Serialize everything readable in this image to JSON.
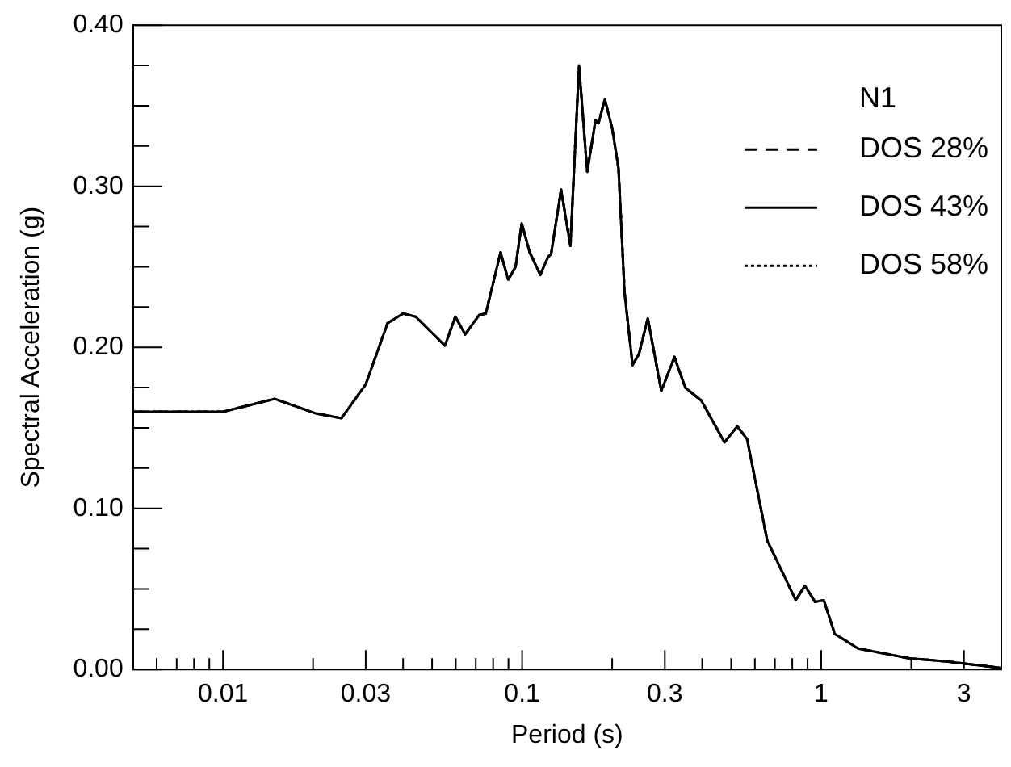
{
  "chart_data": {
    "type": "line",
    "xlabel": "Period (s)",
    "ylabel": "Spectral Acceleration (g)",
    "legend_title": "N1",
    "legend": "top right",
    "grid": false,
    "marker": "none",
    "log": "x",
    "x": [
      0.005,
      0.01,
      0.0149,
      0.0204,
      0.0249,
      0.03,
      0.0355,
      0.04,
      0.0441,
      0.0552,
      0.0598,
      0.0645,
      0.0718,
      0.0756,
      0.0847,
      0.0898,
      0.0951,
      0.0997,
      0.106,
      0.115,
      0.122,
      0.125,
      0.135,
      0.145,
      0.155,
      0.165,
      0.176,
      0.18,
      0.189,
      0.2,
      0.21,
      0.22,
      0.234,
      0.246,
      0.263,
      0.292,
      0.323,
      0.351,
      0.397,
      0.475,
      0.524,
      0.565,
      0.66,
      0.822,
      0.882,
      0.953,
      1.02,
      1.11,
      1.33,
      1.96,
      2.62,
      3.97
    ],
    "series": [
      {
        "name": "DOS 28%",
        "color": "#000000",
        "line_style": "dashed",
        "values": [
          0.16,
          0.16,
          0.168,
          0.159,
          0.156,
          0.177,
          0.215,
          0.221,
          0.219,
          0.201,
          0.219,
          0.208,
          0.22,
          0.221,
          0.259,
          0.242,
          0.25,
          0.277,
          0.259,
          0.245,
          0.256,
          0.258,
          0.298,
          0.263,
          0.375,
          0.309,
          0.341,
          0.339,
          0.354,
          0.336,
          0.311,
          0.234,
          0.189,
          0.196,
          0.218,
          0.173,
          0.194,
          0.175,
          0.167,
          0.141,
          0.151,
          0.143,
          0.08,
          0.043,
          0.052,
          0.042,
          0.043,
          0.022,
          0.013,
          0.007,
          0.005,
          0.001
        ]
      },
      {
        "name": "DOS 43%",
        "color": "#000000",
        "line_style": "solid",
        "values": [
          0.16,
          0.16,
          0.168,
          0.159,
          0.156,
          0.177,
          0.215,
          0.221,
          0.219,
          0.201,
          0.219,
          0.208,
          0.22,
          0.221,
          0.259,
          0.242,
          0.25,
          0.277,
          0.259,
          0.245,
          0.256,
          0.258,
          0.298,
          0.263,
          0.375,
          0.309,
          0.341,
          0.339,
          0.354,
          0.336,
          0.311,
          0.234,
          0.189,
          0.196,
          0.218,
          0.173,
          0.194,
          0.175,
          0.167,
          0.141,
          0.151,
          0.143,
          0.08,
          0.043,
          0.052,
          0.042,
          0.043,
          0.022,
          0.013,
          0.007,
          0.005,
          0.001
        ]
      },
      {
        "name": "DOS 58%",
        "color": "#000000",
        "line_style": "dotted",
        "values": [
          0.16,
          0.16,
          0.168,
          0.159,
          0.156,
          0.177,
          0.215,
          0.221,
          0.219,
          0.201,
          0.219,
          0.208,
          0.22,
          0.221,
          0.259,
          0.242,
          0.25,
          0.277,
          0.259,
          0.245,
          0.256,
          0.258,
          0.298,
          0.263,
          0.375,
          0.309,
          0.341,
          0.339,
          0.354,
          0.336,
          0.311,
          0.234,
          0.189,
          0.196,
          0.218,
          0.173,
          0.194,
          0.175,
          0.167,
          0.141,
          0.151,
          0.143,
          0.08,
          0.043,
          0.052,
          0.042,
          0.043,
          0.022,
          0.013,
          0.007,
          0.005,
          0.001
        ]
      }
    ],
    "xlim": [
      0.005,
      4
    ],
    "xticks": [
      {
        "value": 0.006,
        "label": null
      },
      {
        "value": 0.007,
        "label": null
      },
      {
        "value": 0.008,
        "label": null
      },
      {
        "value": 0.009,
        "label": null
      },
      0.01,
      {
        "value": 0.02,
        "label": null
      },
      0.03,
      {
        "value": 0.04,
        "label": null
      },
      {
        "value": 0.05,
        "label": null
      },
      {
        "value": 0.06,
        "label": null
      },
      {
        "value": 0.07,
        "label": null
      },
      {
        "value": 0.08,
        "label": null
      },
      {
        "value": 0.09,
        "label": null
      },
      0.1,
      {
        "value": 0.2,
        "label": null
      },
      0.3,
      {
        "value": 0.4,
        "label": null
      },
      {
        "value": 0.5,
        "label": null
      },
      {
        "value": 0.6,
        "label": null
      },
      {
        "value": 0.7,
        "label": null
      },
      {
        "value": 0.8,
        "label": null
      },
      {
        "value": 0.9,
        "label": null
      },
      1,
      {
        "value": 2,
        "label": null
      },
      3
    ],
    "ylim": [
      0,
      0.4
    ],
    "yticks": [
      {
        "value": 0,
        "label": "0.00"
      },
      {
        "value": 0.025,
        "label": null
      },
      {
        "value": 0.05,
        "label": null
      },
      {
        "value": 0.075,
        "label": null
      },
      {
        "value": 0.1,
        "label": "0.10"
      },
      {
        "value": 0.125,
        "label": null
      },
      {
        "value": 0.15,
        "label": null
      },
      {
        "value": 0.175,
        "label": null
      },
      {
        "value": 0.2,
        "label": "0.20"
      },
      {
        "value": 0.225,
        "label": null
      },
      {
        "value": 0.25,
        "label": null
      },
      {
        "value": 0.275,
        "label": null
      },
      {
        "value": 0.3,
        "label": "0.30"
      },
      {
        "value": 0.325,
        "label": null
      },
      {
        "value": 0.35,
        "label": null
      },
      {
        "value": 0.375,
        "label": null
      },
      {
        "value": 0.4,
        "label": "0.40"
      }
    ]
  }
}
